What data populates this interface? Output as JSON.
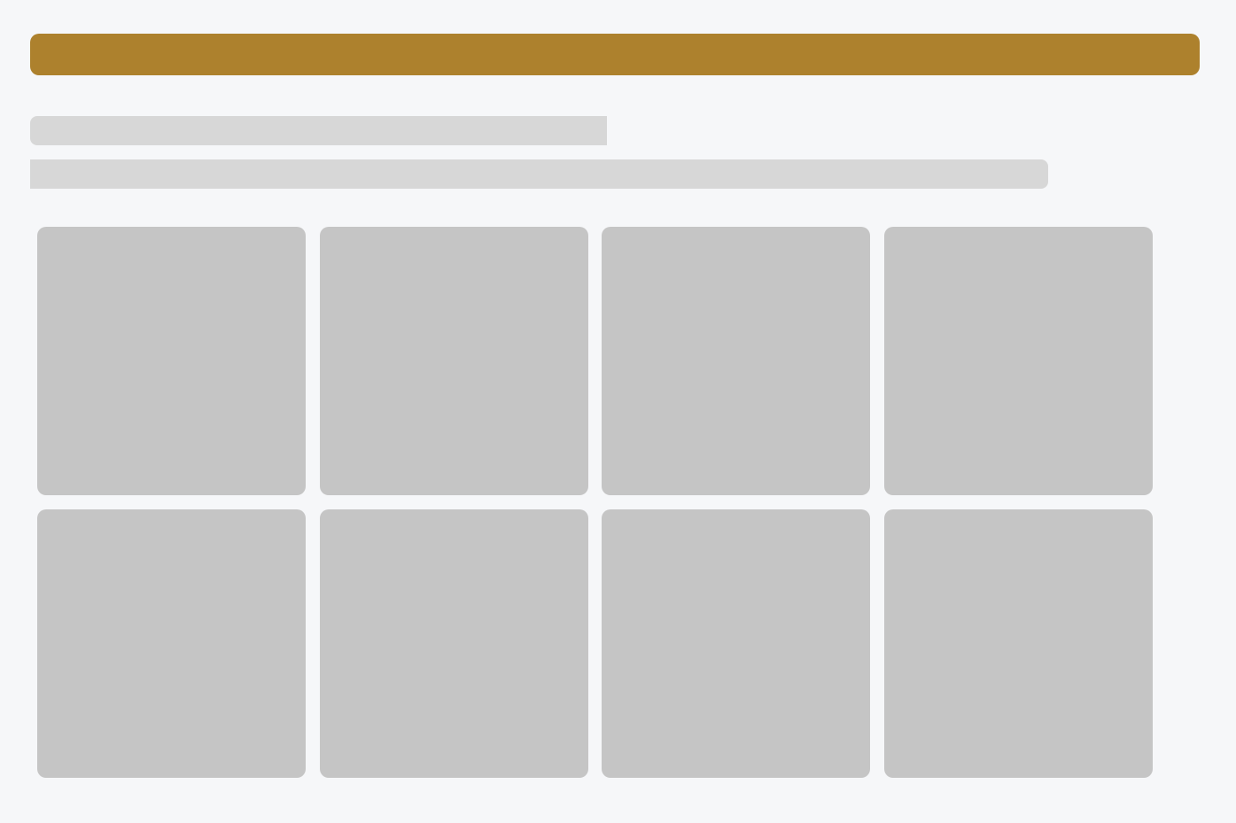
{
  "colors": {
    "background": "#F6F7F9",
    "header_accent": "#AD812D",
    "text_placeholder": "#D7D7D7",
    "tile_placeholder": "#C5C5C5"
  },
  "loading_state": {
    "header": {
      "state": "loading"
    },
    "text_lines": [
      {
        "state": "loading"
      },
      {
        "state": "loading"
      }
    ],
    "tiles": [
      {
        "state": "loading"
      },
      {
        "state": "loading"
      },
      {
        "state": "loading"
      },
      {
        "state": "loading"
      },
      {
        "state": "loading"
      },
      {
        "state": "loading"
      },
      {
        "state": "loading"
      },
      {
        "state": "loading"
      }
    ]
  }
}
